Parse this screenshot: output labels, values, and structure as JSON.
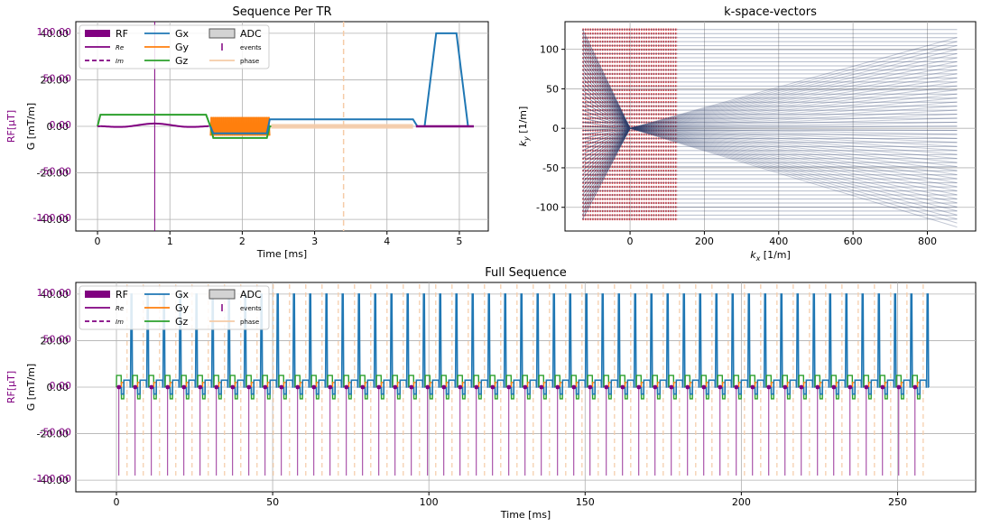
{
  "colors": {
    "rf": "#800080",
    "gx": "#1f77b4",
    "gy": "#ff7f0e",
    "gz": "#2ca02c",
    "phase": "#f5cba7",
    "adc_fill": "#d3d3d3",
    "kline": "#2c3e6b",
    "kadc": "#e03030",
    "grid": "#b0b0b0"
  },
  "chart_data": [
    {
      "type": "line",
      "title": "Sequence Per TR",
      "xlabel": "Time [ms]",
      "ylabel_rf": "RF[μT]",
      "ylabel_g": "G [mT/m]",
      "xlim": [
        -0.3,
        5.4
      ],
      "ylim_g": [
        -45,
        45
      ],
      "ylim_rf": [
        -112.5,
        112.5
      ],
      "xticks": [
        "0",
        "1",
        "2",
        "3",
        "4",
        "5"
      ],
      "xtick_values": [
        0,
        1,
        2,
        3,
        4,
        5
      ],
      "yticks_g": [
        "40.00",
        "20.00",
        "0.00",
        "-20.00",
        "-40.00"
      ],
      "ytick_values_g": [
        40,
        20,
        0,
        -20,
        -40
      ],
      "yticks_rf": [
        "100.00",
        "50.00",
        "0.00",
        "-50.00",
        "-100.00"
      ],
      "ytick_values_rf": [
        100,
        50,
        0,
        -50,
        -100
      ],
      "legend": {
        "placement": "top-left",
        "items": [
          {
            "label": "RF",
            "kind": "band",
            "series": "rf"
          },
          {
            "label": "Re",
            "kind": "line",
            "series": "rf",
            "small": true
          },
          {
            "label": "Im",
            "kind": "dash",
            "series": "rf",
            "small": true
          },
          {
            "label": "Gx",
            "kind": "line",
            "series": "gx"
          },
          {
            "label": "Gy",
            "kind": "line",
            "series": "gy"
          },
          {
            "label": "Gz",
            "kind": "line",
            "series": "gz"
          },
          {
            "label": "ADC",
            "kind": "box",
            "series": "adc_fill"
          },
          {
            "label": "events",
            "kind": "tick",
            "series": "rf",
            "small": true
          },
          {
            "label": "phase",
            "kind": "line",
            "series": "phase",
            "small": true
          }
        ]
      },
      "series": {
        "gz": {
          "t": [
            0,
            0.04,
            1.5,
            1.56,
            1.6,
            2.34,
            2.38,
            2.4
          ],
          "g": [
            0,
            5,
            5,
            0,
            -5,
            -5,
            0,
            0
          ]
        },
        "gx": {
          "t": [
            1.56,
            1.6,
            2.34,
            2.38,
            4.36,
            4.42,
            4.52,
            4.68,
            4.96,
            5.12,
            5.2
          ],
          "g": [
            0,
            -3,
            -3,
            3,
            3,
            0,
            0,
            40,
            40,
            0,
            0
          ]
        },
        "gy": {
          "t_start": 1.56,
          "t_end": 2.38,
          "g_max": 4,
          "g_min": -4
        },
        "adc": {
          "t_start": 2.4,
          "t_end": 4.36
        },
        "rf_event_t": 0.79,
        "phase_event_t": 3.4
      }
    },
    {
      "type": "line",
      "title": "k-space-vectors",
      "xlabel": "k_x [1/m]",
      "ylabel": "k_y [1/m]",
      "xlim": [
        -175,
        930
      ],
      "ylim": [
        -130,
        135
      ],
      "xticks": [
        "0",
        "200",
        "400",
        "600",
        "800"
      ],
      "xtick_values": [
        0,
        200,
        400,
        600,
        800
      ],
      "yticks": [
        "100",
        "50",
        "0",
        "-50",
        "-100"
      ],
      "ytick_values": [
        100,
        50,
        0,
        -50,
        -100
      ],
      "kx_readout_min": -128,
      "kx_readout_max": 128,
      "ky_min": -115,
      "ky_max": 125,
      "kx_spoil_end": 880,
      "n_lines": 48
    },
    {
      "type": "line",
      "title": "Full Sequence",
      "xlabel": "Time [ms]",
      "ylabel_rf": "RF[μT]",
      "ylabel_g": "G [mT/m]",
      "xlim": [
        -13,
        275
      ],
      "ylim_g": [
        -45,
        45
      ],
      "ylim_rf": [
        -112.5,
        112.5
      ],
      "xticks": [
        "0",
        "50",
        "100",
        "150",
        "200",
        "250"
      ],
      "xtick_values": [
        0,
        50,
        100,
        150,
        200,
        250
      ],
      "yticks_g": [
        "40.00",
        "20.00",
        "0.00",
        "-20.00",
        "-40.00"
      ],
      "ytick_values_g": [
        40,
        20,
        0,
        -20,
        -40
      ],
      "yticks_rf": [
        "100.00",
        "50.00",
        "0.00",
        "-50.00",
        "-100.00"
      ],
      "ytick_values_rf": [
        100,
        50,
        0,
        -50,
        -100
      ],
      "tr_ms": 5.2,
      "n_tr": 50
    }
  ]
}
